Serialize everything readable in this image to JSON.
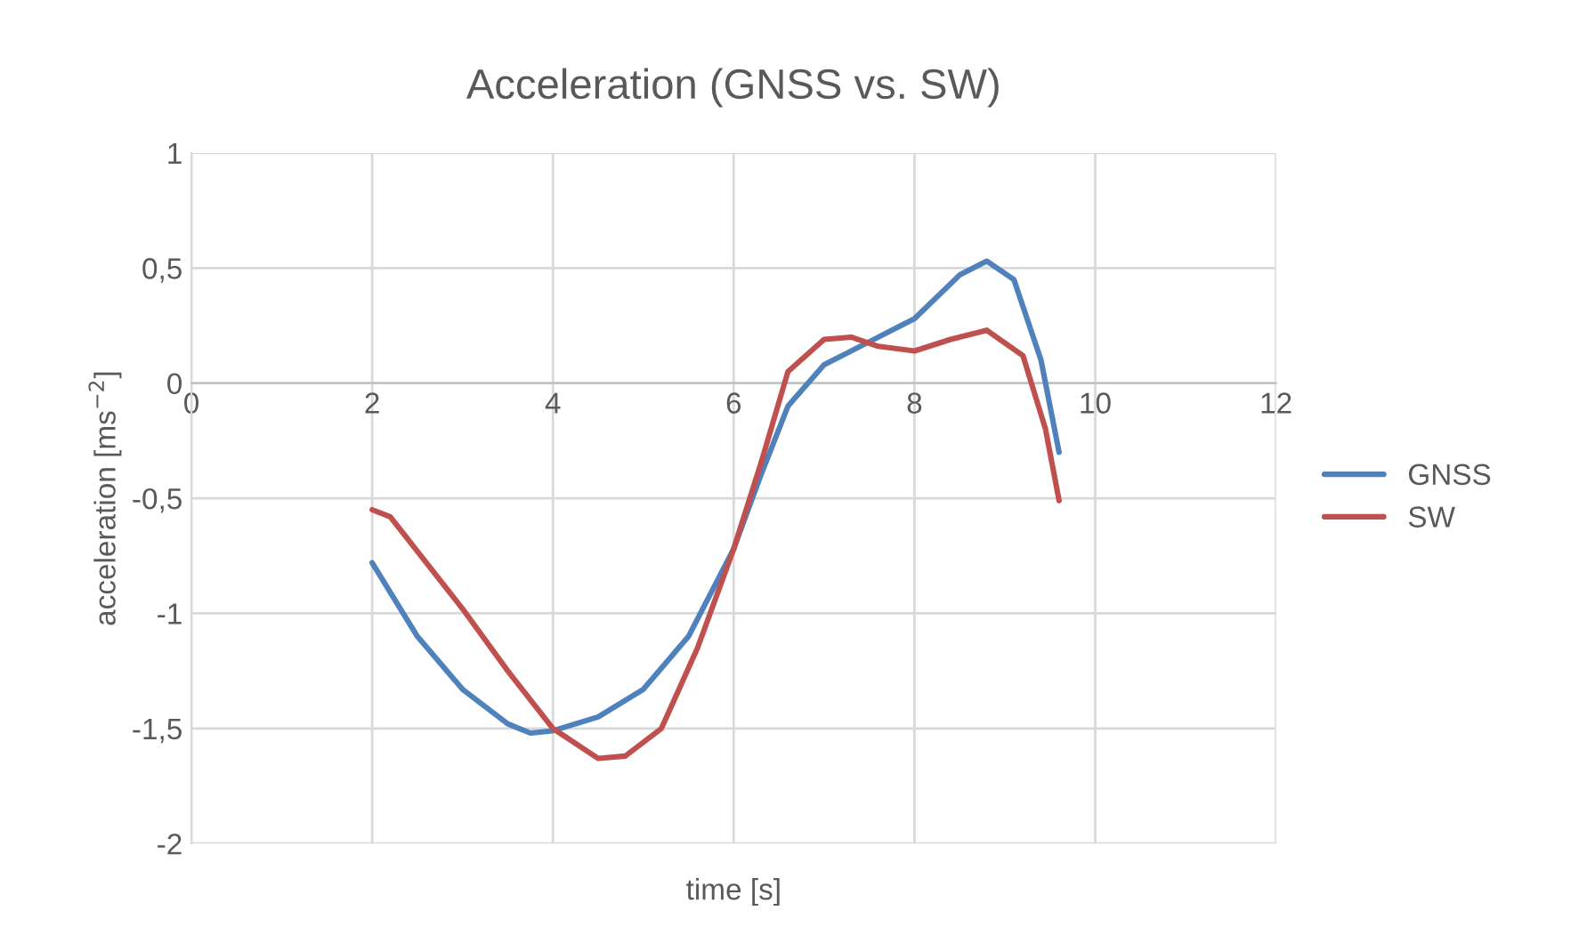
{
  "chart_data": {
    "type": "line",
    "title": "Acceleration (GNSS vs. SW)",
    "xlabel": "time [s]",
    "ylabel": "acceleration [ms$^{−2}$]",
    "xlim": [
      0,
      12
    ],
    "xticks": [
      0,
      2,
      4,
      6,
      8,
      10,
      12
    ],
    "ylim": [
      -2,
      1
    ],
    "yticks": [
      {
        "value": -2,
        "label": "-2"
      },
      {
        "value": -1.5,
        "label": "-1,5"
      },
      {
        "value": -1,
        "label": "-1"
      },
      {
        "value": -0.5,
        "label": "-0,5"
      },
      {
        "value": 0,
        "label": "0"
      },
      {
        "value": 0.5,
        "label": "0,5"
      },
      {
        "value": 1,
        "label": "1"
      }
    ],
    "grid": true,
    "legend": "right",
    "marker": "none",
    "line_style": "solid",
    "series": [
      {
        "name": "GNSS",
        "color": "#4f81bd",
        "x": [
          2,
          2.5,
          3,
          3.5,
          3.75,
          4,
          4.5,
          5,
          5.5,
          6,
          6.3,
          6.6,
          7,
          7.5,
          8,
          8.5,
          8.8,
          9.1,
          9.4,
          9.6
        ],
        "values": [
          -0.78,
          -1.1,
          -1.33,
          -1.48,
          -1.52,
          -1.51,
          -1.45,
          -1.33,
          -1.1,
          -0.72,
          -0.4,
          -0.1,
          0.08,
          0.18,
          0.28,
          0.47,
          0.53,
          0.45,
          0.1,
          -0.3
        ]
      },
      {
        "name": "SW",
        "color": "#c0504d",
        "x": [
          2,
          2.2,
          2.6,
          3,
          3.5,
          4,
          4.5,
          4.8,
          5.2,
          5.6,
          6,
          6.3,
          6.6,
          7,
          7.3,
          7.6,
          8,
          8.4,
          8.8,
          9.2,
          9.45,
          9.6
        ],
        "values": [
          -0.55,
          -0.58,
          -0.78,
          -0.98,
          -1.25,
          -1.5,
          -1.63,
          -1.62,
          -1.5,
          -1.15,
          -0.72,
          -0.35,
          0.05,
          0.19,
          0.2,
          0.16,
          0.14,
          0.19,
          0.23,
          0.12,
          -0.2,
          -0.51
        ]
      }
    ]
  }
}
